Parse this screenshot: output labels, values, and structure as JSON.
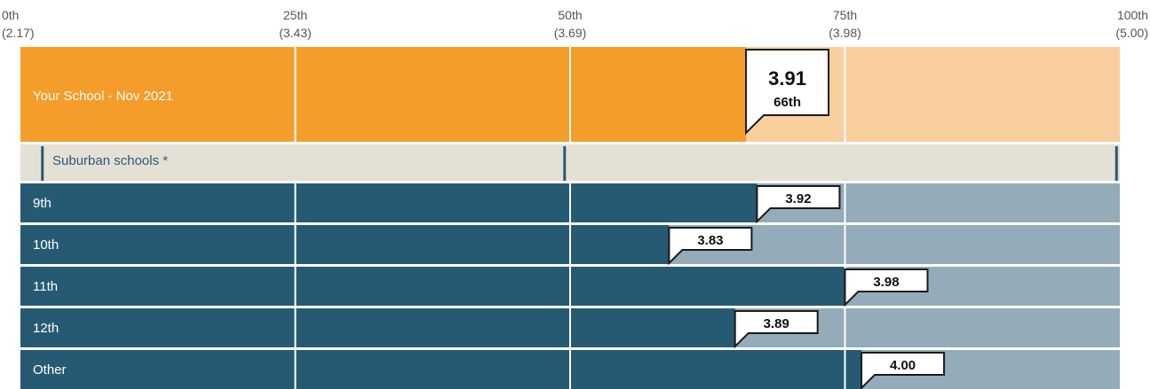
{
  "chart_data": {
    "type": "bar",
    "orientation": "horizontal",
    "x_axis": {
      "unit": "percentile",
      "range": [
        0,
        100
      ],
      "ticks": [
        {
          "pct": 0,
          "label": "0th",
          "value_label": "(2.17)"
        },
        {
          "pct": 25,
          "label": "25th",
          "value_label": "(3.43)"
        },
        {
          "pct": 50,
          "label": "50th",
          "value_label": "(3.69)"
        },
        {
          "pct": 75,
          "label": "75th",
          "value_label": "(3.98)"
        },
        {
          "pct": 100,
          "label": "100th",
          "value_label": "(5.00)"
        }
      ]
    },
    "main": {
      "label": "Your School - Nov 2021",
      "value": 3.91,
      "value_label": "3.91",
      "percentile": 66,
      "percentile_label": "66th",
      "fill_color": "#f59d2a",
      "remainder_color": "#f8cf9d"
    },
    "group_header": {
      "label": "Suburban schools *",
      "background": "#e5e0d6",
      "marker_pcts": [
        2,
        49.5,
        99.7
      ]
    },
    "rows": [
      {
        "label": "9th",
        "value": 3.92,
        "value_label": "3.92",
        "percentile": 67
      },
      {
        "label": "10th",
        "value": 3.83,
        "value_label": "3.83",
        "percentile": 59
      },
      {
        "label": "11th",
        "value": 3.98,
        "value_label": "3.98",
        "percentile": 75
      },
      {
        "label": "12th",
        "value": 3.89,
        "value_label": "3.89",
        "percentile": 65
      },
      {
        "label": "Other",
        "value": 4.0,
        "value_label": "4.00",
        "percentile": 76.5
      }
    ],
    "row_colors": {
      "fill": "#265a73",
      "remainder": "#94abb9"
    },
    "grid": true
  }
}
